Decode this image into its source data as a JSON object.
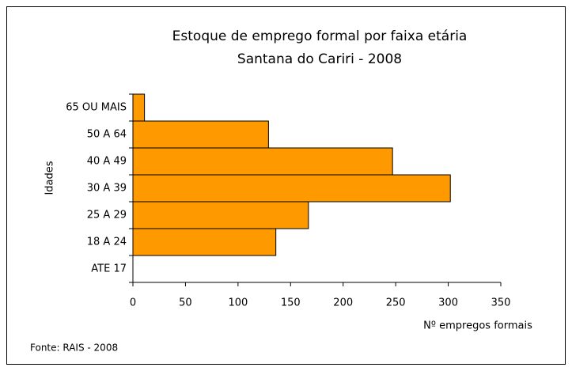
{
  "chart_data": {
    "type": "barh",
    "title": "Estoque de emprego formal por faixa etária",
    "subtitle": "Santana do Cariri - 2008",
    "categories": [
      "65 OU MAIS",
      "50 A 64",
      "40 A 49",
      "30 A 39",
      "25 A 29",
      "18 A 24",
      "ATE 17"
    ],
    "values": [
      11,
      129,
      247,
      302,
      167,
      136,
      0
    ],
    "color": "#ff9900",
    "xlim": [
      0,
      350
    ],
    "xticks": [
      0,
      50,
      100,
      150,
      200,
      250,
      300,
      350
    ],
    "xlabel": "Nº empregos formais",
    "ylabel": "Idades",
    "grid": false,
    "source": "Fonte: RAIS - 2008"
  }
}
